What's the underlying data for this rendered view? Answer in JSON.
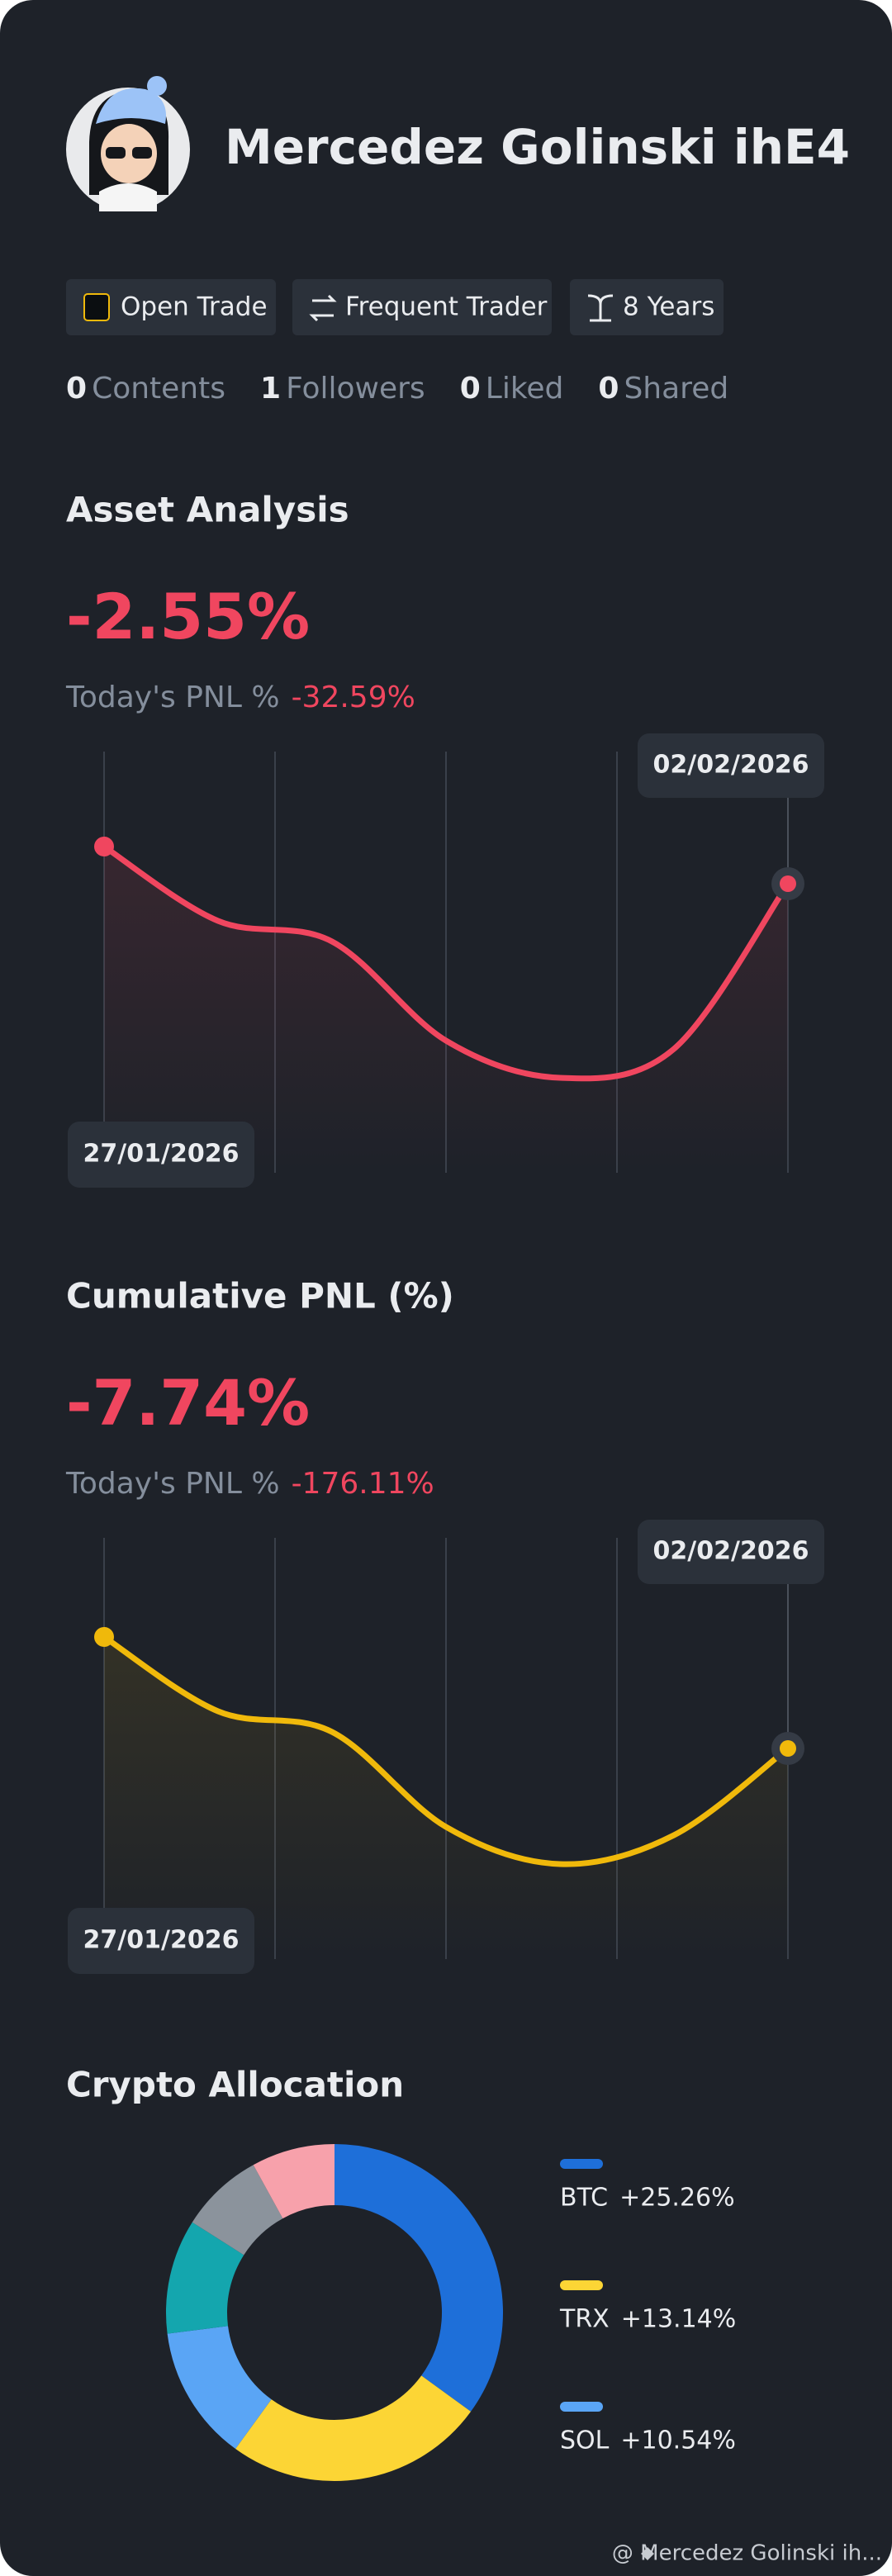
{
  "profile": {
    "name": "Mercedez Golinski ihE4",
    "badges": [
      "Open Trade",
      "Frequent Trader",
      "8 Years"
    ],
    "stats": [
      {
        "count": 0,
        "label": "Contents"
      },
      {
        "count": 1,
        "label": "Followers"
      },
      {
        "count": 0,
        "label": "Liked"
      },
      {
        "count": 0,
        "label": "Shared"
      }
    ]
  },
  "chart_data": [
    {
      "type": "line",
      "title": "Asset Analysis",
      "headline": "-2.55%",
      "subtitle": "Today's PNL %",
      "subtitle_value": "-32.59%",
      "categories": [
        "27/01/2026",
        null,
        null,
        null,
        null,
        null,
        "02/02/2026"
      ],
      "values": [
        79,
        61,
        56,
        32,
        23,
        30,
        70
      ],
      "color": "#f0465f",
      "ylim": [
        0,
        100
      ]
    },
    {
      "type": "line",
      "title": "Cumulative PNL (%)",
      "headline": "-7.74%",
      "subtitle": "Today's PNL %",
      "subtitle_value": "-176.11%",
      "categories": [
        "27/01/2026",
        null,
        null,
        null,
        null,
        null,
        "02/02/2026"
      ],
      "values": [
        78,
        60,
        55,
        32,
        23,
        30,
        51
      ],
      "color": "#f0b90b",
      "ylim": [
        0,
        100
      ]
    },
    {
      "type": "donut",
      "title": "Crypto Allocation",
      "categories": [
        "BTC",
        "TRX",
        "SOL",
        null,
        null,
        null
      ],
      "values": [
        35,
        25,
        13,
        11,
        8,
        8
      ],
      "changes": [
        "+25.26%",
        "+13.14%",
        "+10.54%",
        null,
        null,
        null
      ],
      "colors": [
        "#1e6fd9",
        "#fcd535",
        "#5aa5f5",
        "#14a6ae",
        "#8b939c",
        "#f7a1ab"
      ]
    }
  ],
  "footer": "@ Mercedez Golinski ih..."
}
